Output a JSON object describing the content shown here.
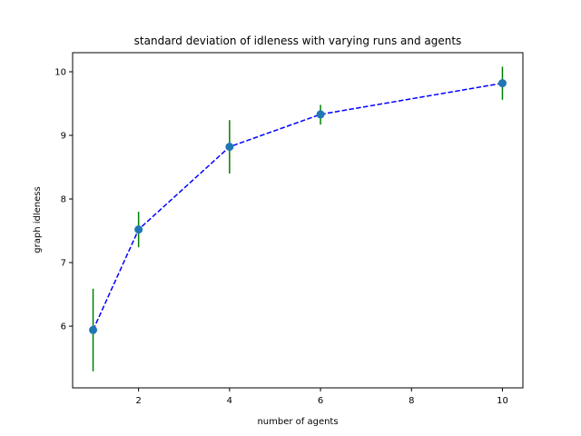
{
  "chart_data": {
    "type": "line",
    "title": "standard deviation of idleness with varying runs and agents",
    "xlabel": "number of agents",
    "ylabel": "graph idleness",
    "xlim": [
      0.55,
      10.45
    ],
    "ylim": [
      5.03,
      10.3
    ],
    "xticks": [
      2,
      4,
      6,
      8,
      10
    ],
    "yticks": [
      6,
      7,
      8,
      9,
      10
    ],
    "grid": false,
    "series": [
      {
        "x": [
          1,
          2,
          4,
          6,
          10
        ],
        "y": [
          5.94,
          7.52,
          8.82,
          9.33,
          9.82
        ],
        "yerr_low": [
          5.29,
          7.24,
          8.4,
          9.17,
          9.56
        ],
        "yerr_high": [
          6.59,
          7.8,
          9.24,
          9.48,
          10.08
        ],
        "line_color": "#0000ff",
        "line_style": "dashed",
        "marker_color": "#1f77b4",
        "errorbar_color": "#008000"
      }
    ]
  }
}
